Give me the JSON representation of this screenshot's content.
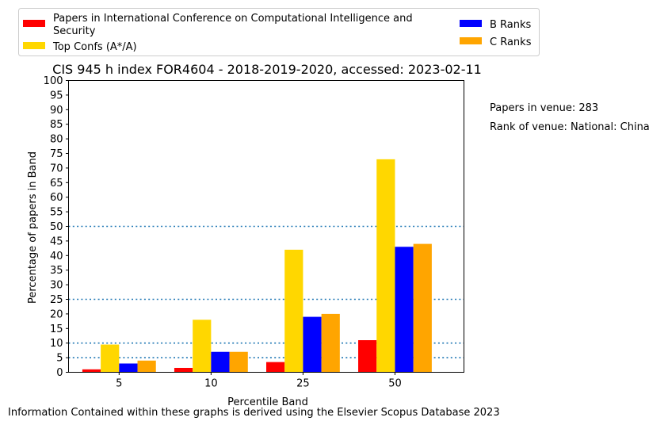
{
  "chart_data": {
    "type": "bar",
    "title": "CIS 945 h index FOR4604 - 2018-2019-2020, accessed: 2023-02-11",
    "xlabel": "Percentile Band",
    "ylabel": "Percentage of papers in Band",
    "categories": [
      "5",
      "10",
      "25",
      "50"
    ],
    "ylim": [
      0,
      100
    ],
    "yticks": [
      0,
      5,
      10,
      15,
      20,
      25,
      30,
      35,
      40,
      45,
      50,
      55,
      60,
      65,
      70,
      75,
      80,
      85,
      90,
      95,
      100
    ],
    "series": [
      {
        "name": "Papers in International Conference on Computational Intelligence and Security",
        "color": "#ff0000",
        "values": [
          1,
          1.5,
          3.5,
          11
        ]
      },
      {
        "name": "Top Confs (A*/A)",
        "color": "#ffd700",
        "values": [
          9.5,
          18,
          42,
          73
        ]
      },
      {
        "name": "B Ranks",
        "color": "#0000ff",
        "values": [
          3,
          7,
          19,
          43
        ]
      },
      {
        "name": "C Ranks",
        "color": "#ffa500",
        "values": [
          4,
          7,
          20,
          44
        ]
      }
    ],
    "reference_lines": [
      5,
      10,
      25,
      50
    ],
    "reference_line_color": "#1f77b4",
    "legend_position": "top",
    "grid": false
  },
  "legend": {
    "line1": "Papers in International Conference on Computational Intelligence and",
    "line2": "Security"
  },
  "side_notes": {
    "papers": "Papers in venue: 283",
    "rank": "Rank of venue: National: China"
  },
  "footer": "Information Contained within these graphs is derived using the Elsevier Scopus Database 2023"
}
